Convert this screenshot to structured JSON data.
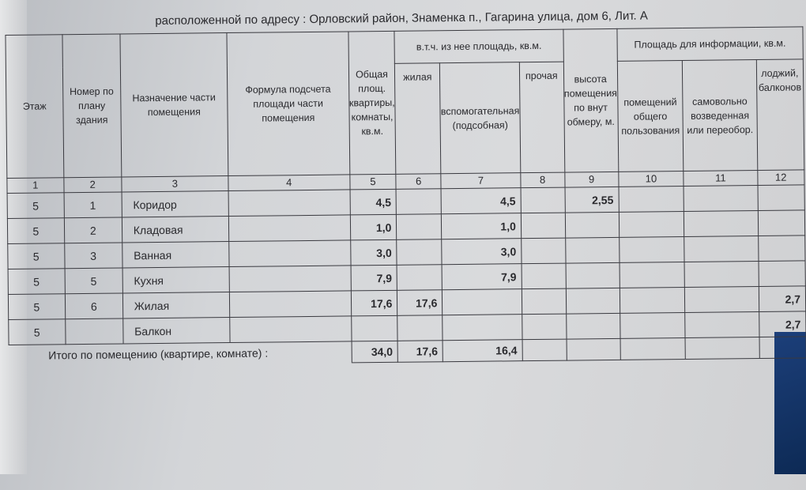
{
  "address_line": "расположенной по адресу : Орловский район, Знаменка п., Гагарина улица, дом 6, Лит. А",
  "headers": {
    "floor": "Этаж",
    "plan_number": "Номер по плану здания",
    "purpose": "Назначение части помещения",
    "formula": "Формула подсчета площади части помещения",
    "total_area": "Общая площ. квартиры, комнаты, кв.м.",
    "including_group": "в.т.ч. из нее площадь, кв.м.",
    "living": "жилая",
    "auxiliary": "вспомогательная (подсобная)",
    "other": "прочая",
    "height": "высота помещения по внут обмеру, м.",
    "info_group": "Площадь для информации, кв.м.",
    "common_use": "помещений общего пользования",
    "unauthorized": "самовольно возведенная или переобор.",
    "loggia": "лоджий, балконов"
  },
  "column_numbers": [
    "1",
    "2",
    "3",
    "4",
    "5",
    "6",
    "7",
    "8",
    "9",
    "10",
    "11",
    "12"
  ],
  "rows": [
    {
      "floor": "5",
      "num": "1",
      "name": "Коридор",
      "total": "4,5",
      "living": "",
      "aux": "4,5",
      "height": "2,55",
      "loggia": ""
    },
    {
      "floor": "5",
      "num": "2",
      "name": "Кладовая",
      "total": "1,0",
      "living": "",
      "aux": "1,0",
      "height": "",
      "loggia": ""
    },
    {
      "floor": "5",
      "num": "3",
      "name": "Ванная",
      "total": "3,0",
      "living": "",
      "aux": "3,0",
      "height": "",
      "loggia": ""
    },
    {
      "floor": "5",
      "num": "5",
      "name": "Кухня",
      "total": "7,9",
      "living": "",
      "aux": "7,9",
      "height": "",
      "loggia": ""
    },
    {
      "floor": "5",
      "num": "6",
      "name": "Жилая",
      "total": "17,6",
      "living": "17,6",
      "aux": "",
      "height": "",
      "loggia": "2,7"
    },
    {
      "floor": "5",
      "num": "",
      "name": "Балкон",
      "total": "",
      "living": "",
      "aux": "",
      "height": "",
      "loggia": "2,7"
    }
  ],
  "total": {
    "label": "Итого по помещению (квартире, комнате) :",
    "total": "34,0",
    "living": "17,6",
    "aux": "16,4"
  }
}
